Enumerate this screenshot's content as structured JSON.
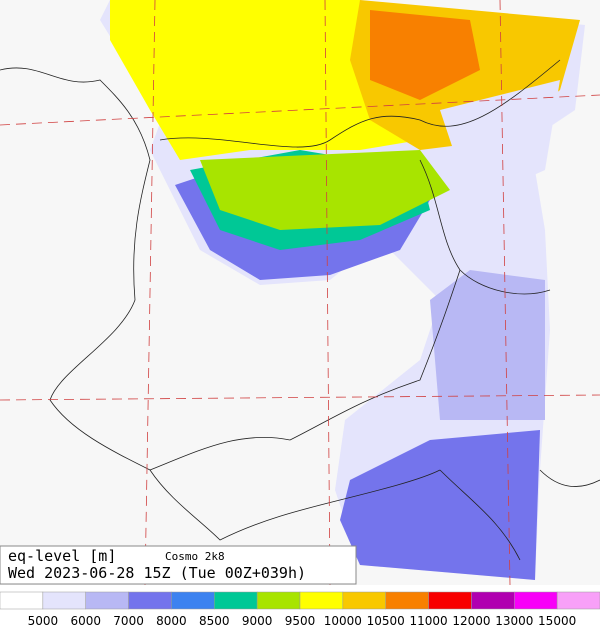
{
  "header": {
    "variable": "eq-level [m]",
    "model": "Cosmo 2k8",
    "valid_time": "Wed 2023-06-28 15Z (Tue 00Z+039h)"
  },
  "colorbar": {
    "levels": [
      5000,
      6000,
      7000,
      8000,
      8500,
      9000,
      9500,
      10000,
      10500,
      11000,
      12000,
      13000,
      15000
    ],
    "colors": [
      "#ffffff",
      "#e4e4fc",
      "#b8b8f4",
      "#7474ec",
      "#3c82f0",
      "#00c896",
      "#a8e400",
      "#ffff00",
      "#f8c800",
      "#f88000",
      "#f80000",
      "#b000b0",
      "#f800f8",
      "#f8a0f8"
    ]
  }
}
